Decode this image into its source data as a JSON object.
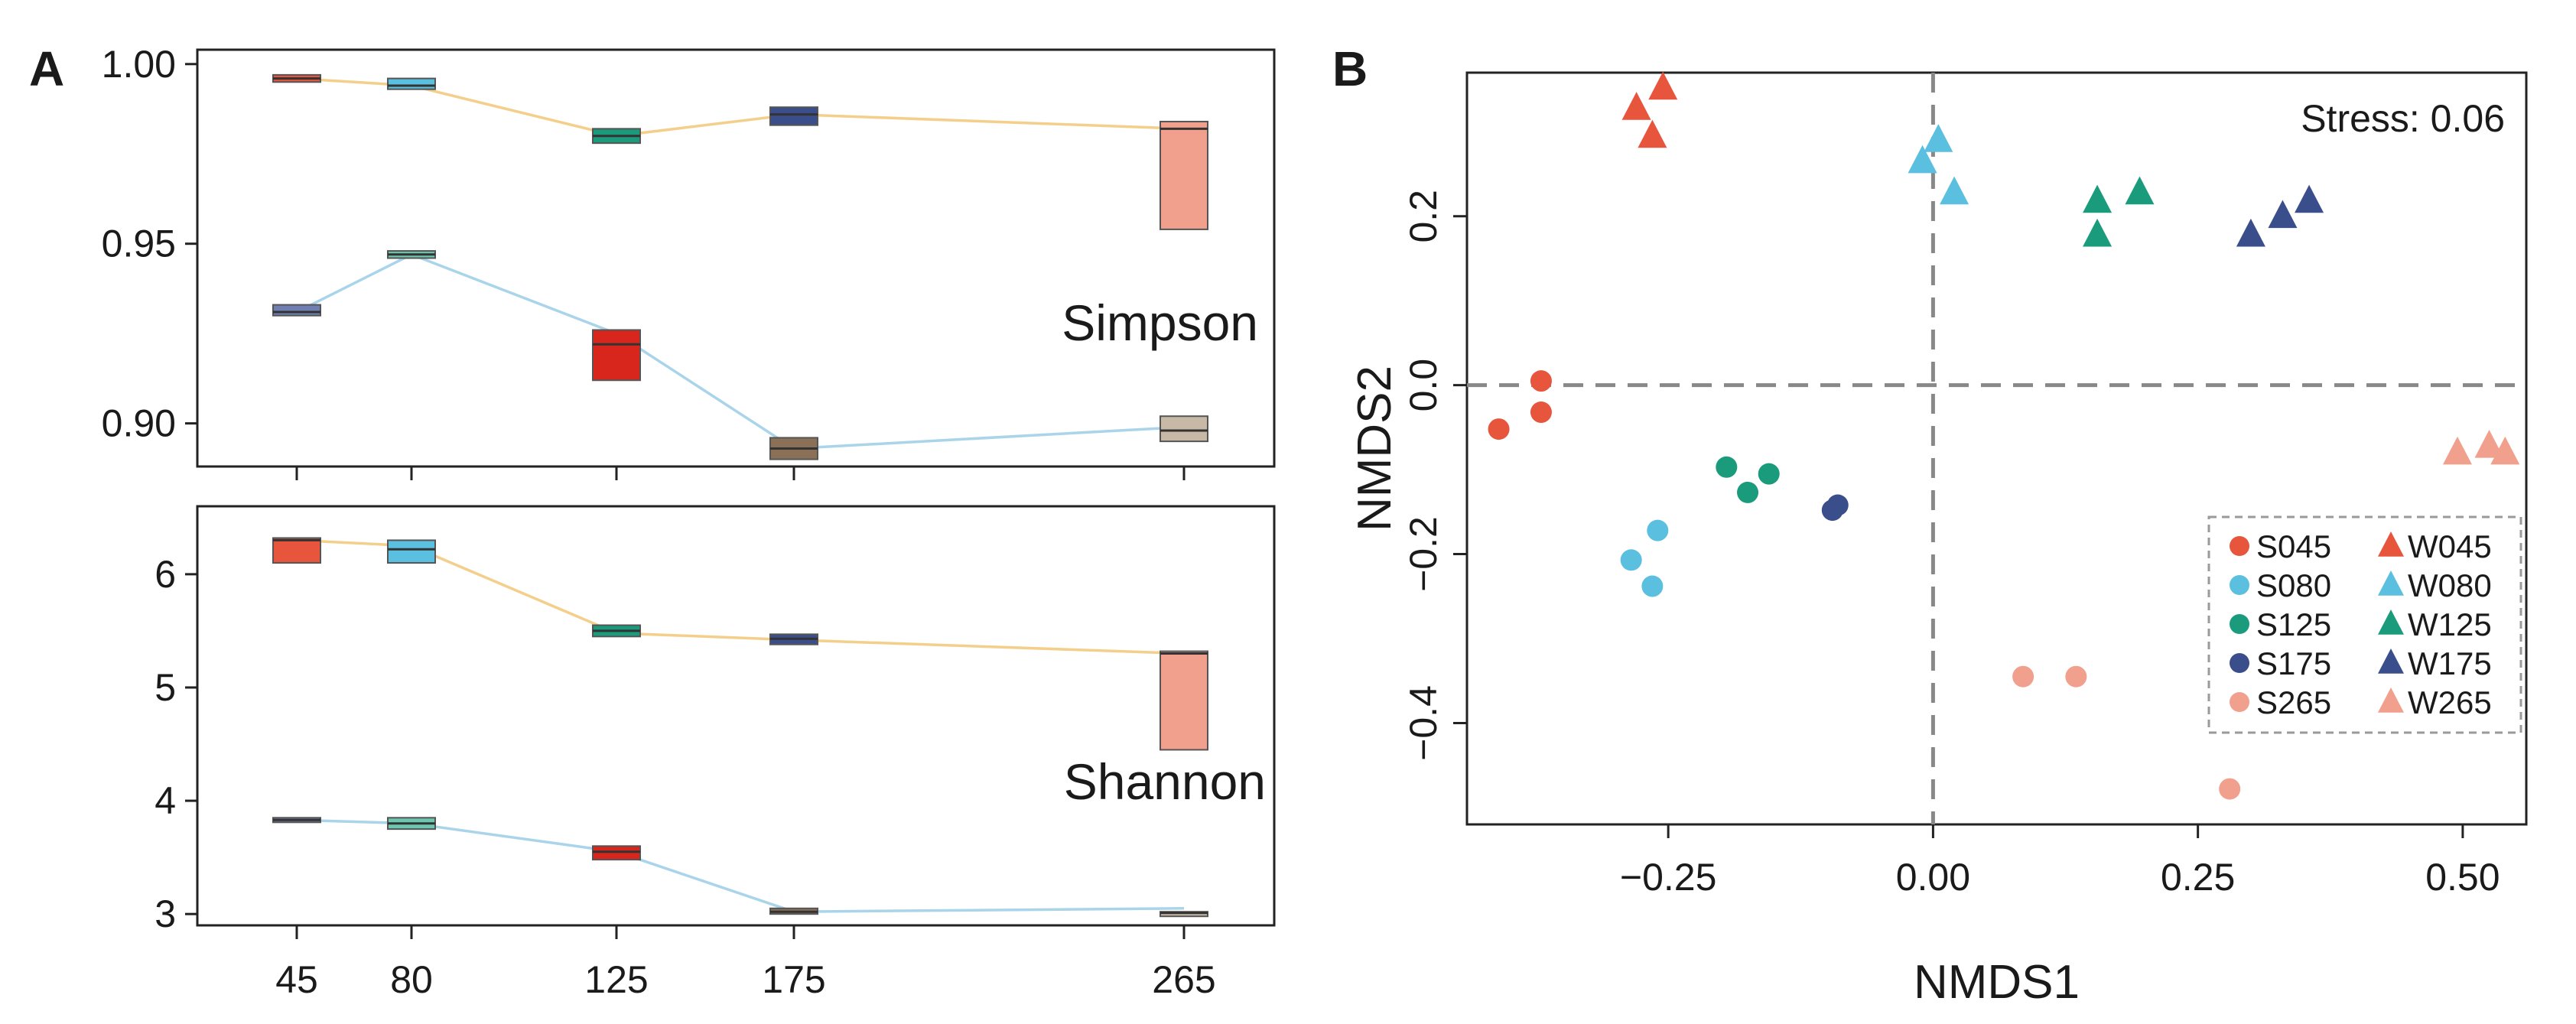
{
  "figure": {
    "panel_a_letter": "A",
    "panel_b_letter": "B",
    "colors": {
      "045": "#e8553d",
      "080": "#5bbfdf",
      "125": "#1a9b7c",
      "175": "#3b4e8c",
      "265": "#f0a08c",
      "red_box": "#d9261c",
      "tan_box": "#c8b8a6",
      "summer_line": "#a9d4ea",
      "winter_line": "#f4cf8b",
      "zero_line": "#888888"
    }
  },
  "chart_data": [
    {
      "id": "simpson",
      "type": "box-line",
      "panel": "A",
      "metric_label": "Simpson",
      "categories": [
        "45",
        "80",
        "125",
        "175",
        "265"
      ],
      "x": [
        45,
        80,
        125,
        175,
        265
      ],
      "ylim": [
        0.888,
        1.004
      ],
      "yticks": [
        0.9,
        0.95,
        1.0
      ],
      "ytick_labels": [
        "0.90",
        "0.95",
        "1.00"
      ],
      "series": [
        {
          "name": "upper",
          "line_color": "#f4cf8b",
          "values": [
            0.996,
            0.994,
            0.98,
            0.986,
            0.982
          ],
          "boxes": [
            {
              "x": 45,
              "low": 0.995,
              "high": 0.997,
              "median": 0.996,
              "color": "#e8553d"
            },
            {
              "x": 80,
              "low": 0.993,
              "high": 0.996,
              "median": 0.994,
              "color": "#5bbfdf"
            },
            {
              "x": 125,
              "low": 0.978,
              "high": 0.982,
              "median": 0.98,
              "color": "#1a9b7c"
            },
            {
              "x": 175,
              "low": 0.983,
              "high": 0.988,
              "median": 0.986,
              "color": "#3b4e8c"
            },
            {
              "x": 265,
              "low": 0.954,
              "high": 0.984,
              "median": 0.982,
              "color": "#f0a08c"
            }
          ]
        },
        {
          "name": "lower",
          "line_color": "#a9d4ea",
          "values": [
            0.931,
            0.947,
            0.925,
            0.893,
            0.899
          ],
          "boxes": [
            {
              "x": 45,
              "low": 0.93,
              "high": 0.933,
              "median": 0.931,
              "color": "#6e7fb0"
            },
            {
              "x": 80,
              "low": 0.946,
              "high": 0.948,
              "median": 0.947,
              "color": "#6cc7b0"
            },
            {
              "x": 125,
              "low": 0.912,
              "high": 0.926,
              "median": 0.922,
              "color": "#d9261c"
            },
            {
              "x": 175,
              "low": 0.89,
              "high": 0.896,
              "median": 0.893,
              "color": "#8b7058"
            },
            {
              "x": 265,
              "low": 0.895,
              "high": 0.902,
              "median": 0.898,
              "color": "#c8b8a6"
            }
          ]
        }
      ]
    },
    {
      "id": "shannon",
      "type": "box-line",
      "panel": "A",
      "metric_label": "Shannon",
      "categories": [
        "45",
        "80",
        "125",
        "175",
        "265"
      ],
      "x": [
        45,
        80,
        125,
        175,
        265
      ],
      "xtick_labels": [
        "45",
        "80",
        "125",
        "175",
        "265"
      ],
      "ylim": [
        2.9,
        6.6
      ],
      "yticks": [
        3,
        4,
        5,
        6
      ],
      "ytick_labels": [
        "3",
        "4",
        "5",
        "6"
      ],
      "series": [
        {
          "name": "upper",
          "line_color": "#f4cf8b",
          "values": [
            6.3,
            6.25,
            5.48,
            5.42,
            5.3
          ],
          "boxes": [
            {
              "x": 45,
              "low": 6.1,
              "high": 6.32,
              "median": 6.3,
              "color": "#e8553d"
            },
            {
              "x": 80,
              "low": 6.1,
              "high": 6.3,
              "median": 6.22,
              "color": "#5bbfdf"
            },
            {
              "x": 125,
              "low": 5.45,
              "high": 5.55,
              "median": 5.5,
              "color": "#1a9b7c"
            },
            {
              "x": 175,
              "low": 5.38,
              "high": 5.47,
              "median": 5.43,
              "color": "#3b4e8c"
            },
            {
              "x": 265,
              "low": 4.45,
              "high": 5.32,
              "median": 5.3,
              "color": "#f0a08c"
            }
          ]
        },
        {
          "name": "lower",
          "line_color": "#a9d4ea",
          "values": [
            3.83,
            3.8,
            3.55,
            3.02,
            3.05
          ],
          "boxes": [
            {
              "x": 45,
              "low": 3.81,
              "high": 3.85,
              "median": 3.83,
              "color": "#6e7fb0"
            },
            {
              "x": 80,
              "low": 3.75,
              "high": 3.85,
              "median": 3.8,
              "color": "#6cc7b0"
            },
            {
              "x": 125,
              "low": 3.48,
              "high": 3.6,
              "median": 3.55,
              "color": "#d9261c"
            },
            {
              "x": 175,
              "low": 3.0,
              "high": 3.05,
              "median": 3.02,
              "color": "#8b7058"
            },
            {
              "x": 265,
              "low": 3.0,
              "high": 3.02,
              "median": 3.01,
              "color": "#c8b8a6"
            }
          ]
        }
      ]
    },
    {
      "id": "nmds",
      "type": "scatter",
      "panel": "B",
      "xlabel": "NMDS1",
      "ylabel": "NMDS2",
      "xlim": [
        -0.44,
        0.56
      ],
      "ylim": [
        -0.52,
        0.37
      ],
      "xticks": [
        -0.25,
        0.0,
        0.25,
        0.5
      ],
      "xtick_labels": [
        "−0.25",
        "0.00",
        "0.25",
        "0.50"
      ],
      "yticks": [
        -0.4,
        -0.2,
        0.0,
        0.2
      ],
      "ytick_labels": [
        "−0.4",
        "−0.2",
        "0.0",
        "0.2"
      ],
      "annotation": "Stress: 0.06",
      "legend_position": "bottom-right",
      "series": [
        {
          "name": "S045",
          "shape": "circle",
          "color": "#e8553d",
          "points": [
            [
              -0.37,
              0.005
            ],
            [
              -0.41,
              -0.052
            ],
            [
              -0.37,
              -0.032
            ]
          ]
        },
        {
          "name": "S080",
          "shape": "circle",
          "color": "#5bbfdf",
          "points": [
            [
              -0.285,
              -0.207
            ],
            [
              -0.265,
              -0.238
            ],
            [
              -0.26,
              -0.172
            ]
          ]
        },
        {
          "name": "S125",
          "shape": "circle",
          "color": "#1a9b7c",
          "points": [
            [
              -0.195,
              -0.097
            ],
            [
              -0.175,
              -0.127
            ],
            [
              -0.155,
              -0.105
            ]
          ]
        },
        {
          "name": "S175",
          "shape": "circle",
          "color": "#3b4e8c",
          "points": [
            [
              -0.095,
              -0.148
            ],
            [
              -0.09,
              -0.142
            ]
          ]
        },
        {
          "name": "S265",
          "shape": "circle",
          "color": "#f0a08c",
          "points": [
            [
              0.085,
              -0.345
            ],
            [
              0.135,
              -0.345
            ],
            [
              0.28,
              -0.478
            ]
          ]
        },
        {
          "name": "W045",
          "shape": "triangle",
          "color": "#e8553d",
          "points": [
            [
              -0.28,
              0.328
            ],
            [
              -0.255,
              0.352
            ],
            [
              -0.265,
              0.295
            ]
          ]
        },
        {
          "name": "W080",
          "shape": "triangle",
          "color": "#5bbfdf",
          "points": [
            [
              -0.01,
              0.265
            ],
            [
              0.005,
              0.29
            ],
            [
              0.02,
              0.228
            ]
          ]
        },
        {
          "name": "W125",
          "shape": "triangle",
          "color": "#1a9b7c",
          "points": [
            [
              0.155,
              0.218
            ],
            [
              0.195,
              0.228
            ],
            [
              0.155,
              0.178
            ]
          ]
        },
        {
          "name": "W175",
          "shape": "triangle",
          "color": "#3b4e8c",
          "points": [
            [
              0.3,
              0.178
            ],
            [
              0.33,
              0.2
            ],
            [
              0.355,
              0.218
            ]
          ]
        },
        {
          "name": "W265",
          "shape": "triangle",
          "color": "#f0a08c",
          "points": [
            [
              0.495,
              -0.08
            ],
            [
              0.525,
              -0.072
            ],
            [
              0.54,
              -0.08
            ]
          ]
        }
      ],
      "legend": [
        {
          "label": "S045",
          "shape": "circle",
          "color": "#e8553d"
        },
        {
          "label": "W045",
          "shape": "triangle",
          "color": "#e8553d"
        },
        {
          "label": "S080",
          "shape": "circle",
          "color": "#5bbfdf"
        },
        {
          "label": "W080",
          "shape": "triangle",
          "color": "#5bbfdf"
        },
        {
          "label": "S125",
          "shape": "circle",
          "color": "#1a9b7c"
        },
        {
          "label": "W125",
          "shape": "triangle",
          "color": "#1a9b7c"
        },
        {
          "label": "S175",
          "shape": "circle",
          "color": "#3b4e8c"
        },
        {
          "label": "W175",
          "shape": "triangle",
          "color": "#3b4e8c"
        },
        {
          "label": "S265",
          "shape": "circle",
          "color": "#f0a08c"
        },
        {
          "label": "W265",
          "shape": "triangle",
          "color": "#f0a08c"
        }
      ]
    }
  ]
}
